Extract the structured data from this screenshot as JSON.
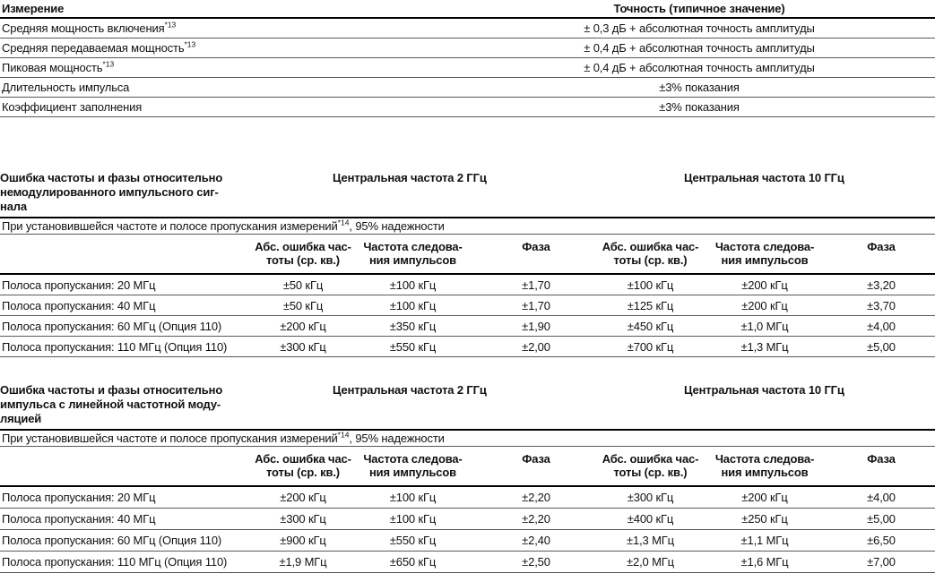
{
  "colors": {
    "background": "#ffffff",
    "text": "#111111",
    "rule_heavy": "#000000",
    "rule_light": "#595959"
  },
  "table1": {
    "header": {
      "measurement": "Измерение",
      "accuracy": "Точность (типичное значение)"
    },
    "rows": [
      {
        "cells": [
          {
            "text": "Средняя мощность включения",
            "sup": "*13"
          },
          "± 0,3 дБ + абсолютная точность амплитуды"
        ]
      },
      {
        "cells": [
          {
            "text": "Средняя передаваемая мощность",
            "sup": "*13"
          },
          "± 0,4 дБ + абсолютная точность амплитуды"
        ]
      },
      {
        "cells": [
          {
            "text": "Пиковая мощность",
            "sup": "*13"
          },
          "± 0,4 дБ + абсолютная точность амплитуды"
        ]
      },
      {
        "cells": [
          "Длительность импульса",
          "±3% показания"
        ]
      },
      {
        "cells": [
          "Коэффициент заполнения",
          "±3% показания"
        ]
      }
    ]
  },
  "frequency_headers": {
    "f2": "Центральная частота 2 ГГц",
    "f10": "Центральная частота 10 ГГц"
  },
  "columns": [
    {
      "line1": "Абс. ошибка час-",
      "line2": "тоты (ср. кв.)"
    },
    {
      "line1": "Частота следова-",
      "line2": "ния импульсов"
    },
    {
      "line1": "Фаза",
      "line2": ""
    }
  ],
  "sections": [
    {
      "id": "unmodulated",
      "title_lines": [
        "Ошибка частоты и фазы относительно",
        "немодулированного импульсного сиг-",
        "нала"
      ],
      "note": {
        "pre": "При установившейся частоте и полосе пропускания измерений",
        "sup": "*14",
        "post": ", 95% надежности"
      },
      "rows": [
        {
          "cells": [
            "Полоса пропускания: 20 МГц",
            "±50 кГц",
            "±100 кГц",
            "±1,70",
            "±100 кГц",
            "±200 кГц",
            "±3,20"
          ]
        },
        {
          "cells": [
            "Полоса пропускания: 40 МГц",
            "±50 кГц",
            "±100 кГц",
            "±1,70",
            "±125 кГц",
            "±200 кГц",
            "±3,70"
          ]
        },
        {
          "cells": [
            "Полоса пропускания: 60 МГц (Опция 110)",
            "±200 кГц",
            "±350 кГц",
            "±1,90",
            "±450 кГц",
            "±1,0 МГц",
            "±4,00"
          ]
        },
        {
          "cells": [
            "Полоса пропускания: 110 МГц (Опция 110)",
            "±300 кГц",
            "±550 кГц",
            "±2,00",
            "±700 кГц",
            "±1,3 МГц",
            "±5,00"
          ]
        }
      ]
    },
    {
      "id": "lfm",
      "title_lines": [
        "Ошибка частоты и фазы относительно",
        "импульса с линейной частотной моду-",
        "ляцией"
      ],
      "note": {
        "pre": "При установившейся частоте и полосе пропускания измерений",
        "sup": "*14",
        "post": ", 95% надежности"
      },
      "rows": [
        {
          "cells": [
            "Полоса пропускания: 20 МГц",
            "±200 кГц",
            "±100 кГц",
            "±2,20",
            "±300 кГц",
            "±200 кГц",
            "±4,00"
          ]
        },
        {
          "cells": [
            "Полоса пропускания: 40 МГц",
            "±300 кГц",
            "±100 кГц",
            "±2,20",
            "±400 кГц",
            "±250 кГц",
            "±5,00"
          ]
        },
        {
          "cells": [
            "Полоса пропускания: 60 МГц (Опция 110)",
            "±900 кГц",
            "±550 кГц",
            "±2,40",
            "±1,3 МГц",
            "±1,1 МГц",
            "±6,50"
          ]
        },
        {
          "cells": [
            "Полоса пропускания: 110 МГц (Опция 110)",
            "±1,9 МГц",
            "±650 кГц",
            "±2,50",
            "±2,0 МГц",
            "±1,6 МГц",
            "±7,00"
          ]
        }
      ]
    }
  ]
}
